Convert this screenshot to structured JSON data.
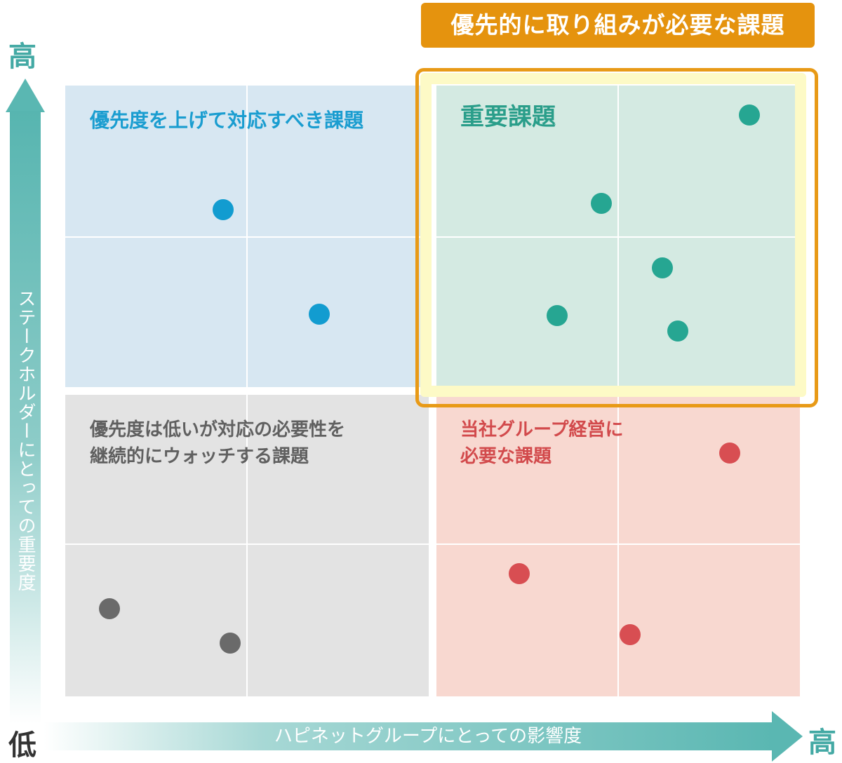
{
  "priority_banner": "優先的に取り組みが必要な課題",
  "quadrants": {
    "top_left": "優先度を上げて対応すべき課題",
    "top_right": "重要課題",
    "bottom_left_line1": "優先度は低いが対応の必要性を",
    "bottom_left_line2": "継続的にウォッチする課題",
    "bottom_right_line1": "当社グループ経営に",
    "bottom_right_line2": "必要な課題"
  },
  "y_axis": {
    "label": "ステークホルダーにとっての重要度",
    "high": "高",
    "low": "低"
  },
  "x_axis": {
    "label": "ハピネットグループにとっての影響度",
    "high": "高"
  },
  "colors": {
    "important": "#26a692",
    "raise_priority": "#129cd0",
    "watch": "#6a6a6a",
    "management": "#d84e52",
    "banner": "#e5930e"
  }
}
